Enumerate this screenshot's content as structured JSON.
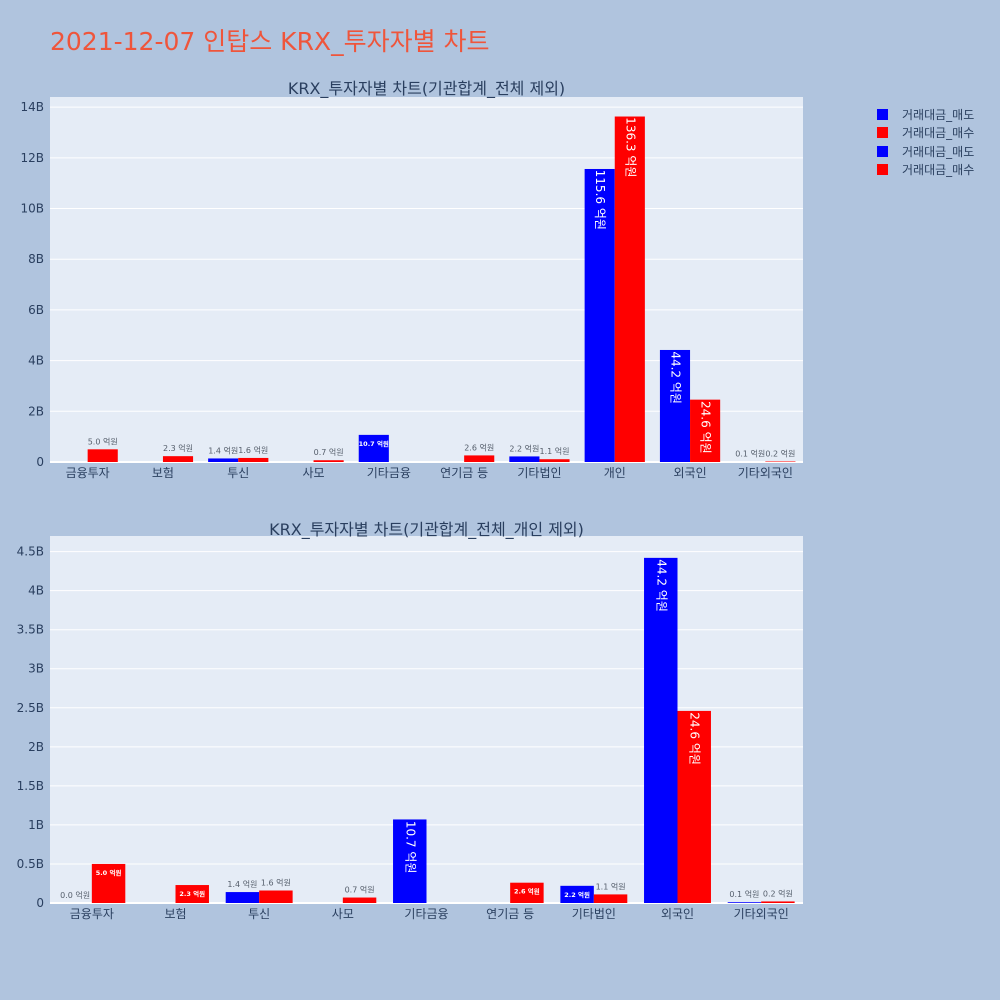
{
  "page_title": "2021-12-07 인탑스 KRX_투자자별 차트",
  "colors": {
    "page_bg": "#b0c4de",
    "plot_bg": "#e5ecf6",
    "title": "#ef553b",
    "text": "#2a3f5f",
    "sell": "#0000ff",
    "buy": "#ff0000"
  },
  "legend": [
    {
      "label": "거래대금_매도",
      "color": "#0000ff"
    },
    {
      "label": "거래대금_매수",
      "color": "#ff0000"
    },
    {
      "label": "거래대금_매도",
      "color": "#0000ff"
    },
    {
      "label": "거래대금_매수",
      "color": "#ff0000"
    }
  ],
  "chart_data": [
    {
      "type": "bar",
      "title": "KRX_투자자별 차트(기관합계_전체 제외)",
      "categories": [
        "금융투자",
        "보험",
        "투신",
        "사모",
        "기타금융",
        "연기금 등",
        "기타법인",
        "개인",
        "외국인",
        "기타외국인"
      ],
      "ylim": [
        0,
        14.4
      ],
      "yticks": [
        0,
        2,
        4,
        6,
        8,
        10,
        12,
        14
      ],
      "ytick_labels": [
        "0",
        "2B",
        "4B",
        "6B",
        "8B",
        "10B",
        "12B",
        "14B"
      ],
      "series": [
        {
          "name": "거래대금_매도",
          "color": "#0000ff",
          "values": [
            0,
            0,
            0.14,
            0,
            1.07,
            0,
            0.22,
            11.56,
            4.42,
            0.01
          ],
          "labels": [
            "",
            "",
            "1.4 억원",
            "",
            "10.7 억원",
            "",
            "2.2 억원",
            "115.6 억원",
            "44.2 억원",
            "0.1 억원"
          ]
        },
        {
          "name": "거래대금_매수",
          "color": "#ff0000",
          "values": [
            0.5,
            0.23,
            0.16,
            0.07,
            0,
            0.26,
            0.11,
            13.63,
            2.46,
            0.02
          ],
          "labels": [
            "5.0 억원",
            "2.3 억원",
            "1.6 억원",
            "0.7 억원",
            "",
            "2.6 억원",
            "1.1 억원",
            "136.3 억원",
            "24.6 억원",
            "0.2 억원"
          ]
        }
      ],
      "grid": true
    },
    {
      "type": "bar",
      "title": "KRX_투자자별 차트(기관합계_전체_개인 제외)",
      "categories": [
        "금융투자",
        "보험",
        "투신",
        "사모",
        "기타금융",
        "연기금 등",
        "기타법인",
        "외국인",
        "기타외국인"
      ],
      "ylim": [
        0,
        4.7
      ],
      "yticks": [
        0,
        0.5,
        1,
        1.5,
        2,
        2.5,
        3,
        3.5,
        4,
        4.5
      ],
      "ytick_labels": [
        "0",
        "0.5B",
        "1B",
        "1.5B",
        "2B",
        "2.5B",
        "3B",
        "3.5B",
        "4B",
        "4.5B"
      ],
      "series": [
        {
          "name": "거래대금_매도",
          "color": "#0000ff",
          "values": [
            0,
            0,
            0.14,
            0,
            1.07,
            0,
            0.22,
            4.42,
            0.01
          ],
          "labels": [
            "0.0 억원",
            "",
            "1.4 억원",
            "",
            "10.7 억원",
            "",
            "2.2 억원",
            "44.2 억원",
            "0.1 억원"
          ]
        },
        {
          "name": "거래대금_매수",
          "color": "#ff0000",
          "values": [
            0.5,
            0.23,
            0.16,
            0.07,
            0,
            0.26,
            0.11,
            2.46,
            0.02
          ],
          "labels": [
            "5.0 억원",
            "2.3 억원",
            "1.6 억원",
            "0.7 억원",
            "",
            "2.6 억원",
            "1.1 억원",
            "24.6 억원",
            "0.2 억원"
          ]
        }
      ],
      "grid": true
    }
  ]
}
